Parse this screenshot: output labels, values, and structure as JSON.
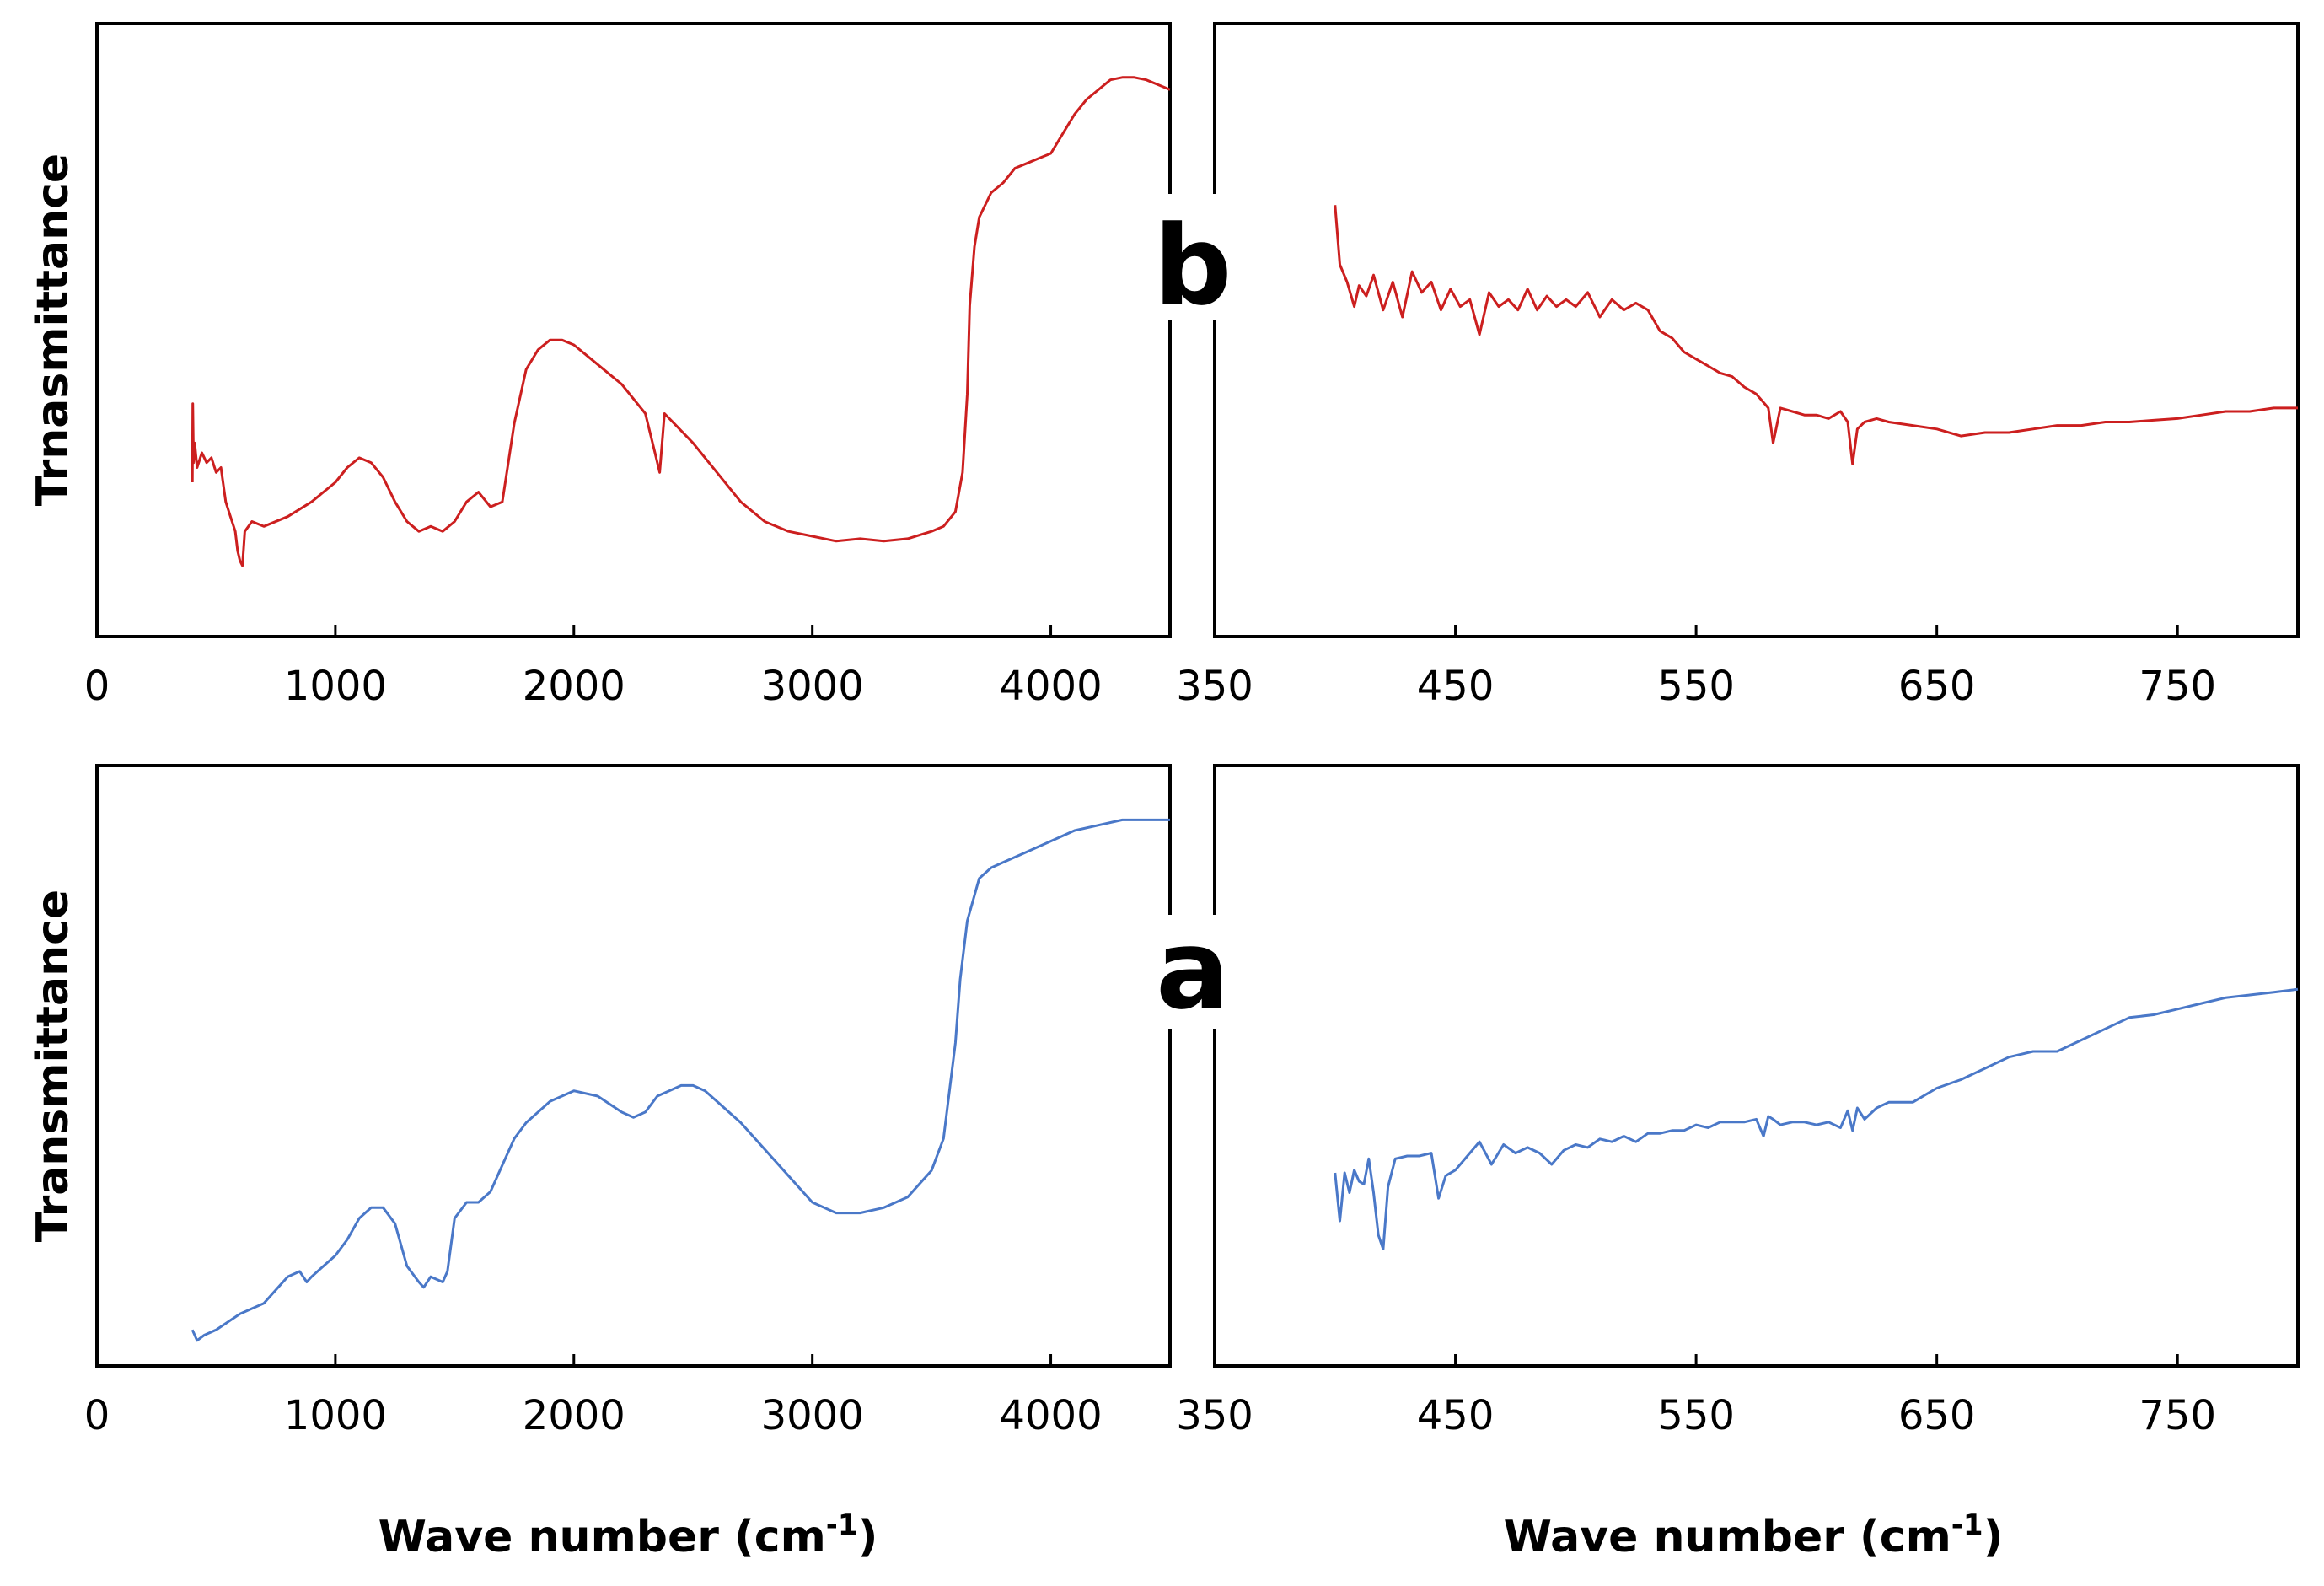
{
  "figure": {
    "colors": {
      "series_b": "#cc1f1f",
      "series_a": "#4a78c8"
    },
    "label_b": "b",
    "label_a": "a"
  },
  "chart_data": [
    {
      "id": "b-full",
      "type": "line",
      "panel": "b",
      "ylabel": "Trnasmittance",
      "xlabel": "",
      "xlim": [
        0,
        4500
      ],
      "ylim": [
        0,
        100
      ],
      "xticks": [
        0,
        1000,
        2000,
        3000,
        4000
      ],
      "series": [
        {
          "name": "b",
          "x": [
            400,
            402,
            405,
            410,
            420,
            440,
            460,
            480,
            500,
            520,
            540,
            560,
            580,
            590,
            600,
            610,
            620,
            650,
            700,
            800,
            900,
            1000,
            1050,
            1100,
            1150,
            1200,
            1250,
            1300,
            1350,
            1400,
            1450,
            1500,
            1550,
            1600,
            1650,
            1700,
            1750,
            1800,
            1850,
            1900,
            1950,
            2000,
            2100,
            2200,
            2300,
            2340,
            2360,
            2380,
            2420,
            2500,
            2600,
            2700,
            2800,
            2900,
            3000,
            3100,
            3200,
            3300,
            3400,
            3500,
            3550,
            3600,
            3630,
            3650,
            3660,
            3680,
            3700,
            3750,
            3800,
            3850,
            3900,
            3950,
            4000,
            4050,
            4100,
            4150,
            4200,
            4250,
            4300,
            4350,
            4400,
            4450,
            4500
          ],
          "values": [
            22,
            38,
            26,
            30,
            25,
            28,
            26,
            27,
            24,
            25,
            18,
            15,
            12,
            8,
            6,
            5,
            12,
            14,
            13,
            15,
            18,
            22,
            25,
            27,
            26,
            23,
            18,
            14,
            12,
            13,
            12,
            14,
            18,
            20,
            17,
            18,
            34,
            45,
            49,
            51,
            51,
            50,
            46,
            42,
            36,
            28,
            24,
            36,
            34,
            30,
            24,
            18,
            14,
            12,
            11,
            10,
            10.5,
            10,
            10.5,
            12,
            13,
            16,
            24,
            40,
            58,
            70,
            76,
            81,
            83,
            86,
            87,
            88,
            89,
            93,
            97,
            100,
            102,
            104,
            104.5,
            104.5,
            104,
            103,
            102
          ]
        }
      ]
    },
    {
      "id": "b-zoom",
      "type": "line",
      "panel": "b",
      "ylabel": "",
      "xlabel": "",
      "xlim": [
        350,
        800
      ],
      "ylim": [
        0,
        100
      ],
      "xticks": [
        350,
        450,
        550,
        650,
        750
      ],
      "series": [
        {
          "name": "b",
          "x": [
            400,
            402,
            405,
            408,
            410,
            413,
            416,
            420,
            424,
            428,
            432,
            436,
            440,
            444,
            448,
            452,
            456,
            460,
            464,
            468,
            472,
            476,
            480,
            484,
            488,
            492,
            496,
            500,
            505,
            510,
            515,
            520,
            525,
            530,
            535,
            540,
            545,
            550,
            555,
            560,
            565,
            570,
            575,
            580,
            582,
            585,
            590,
            595,
            600,
            605,
            610,
            613,
            615,
            617,
            620,
            625,
            630,
            640,
            650,
            660,
            670,
            680,
            690,
            700,
            710,
            720,
            730,
            740,
            750,
            760,
            770,
            780,
            790,
            800
          ],
          "values": [
            92,
            75,
            70,
            63,
            69,
            66,
            72,
            62,
            70,
            60,
            73,
            67,
            70,
            62,
            68,
            63,
            65,
            55,
            67,
            63,
            65,
            62,
            68,
            62,
            66,
            63,
            65,
            63,
            67,
            60,
            65,
            62,
            64,
            62,
            56,
            54,
            50,
            48,
            46,
            44,
            43,
            40,
            38,
            34,
            24,
            34,
            33,
            32,
            32,
            31,
            33,
            30,
            18,
            28,
            30,
            31,
            30,
            29,
            28,
            26,
            27,
            27,
            28,
            29,
            29,
            30,
            30,
            30.5,
            31,
            32,
            33,
            33,
            34,
            34
          ]
        }
      ]
    },
    {
      "id": "a-full",
      "type": "line",
      "panel": "a",
      "ylabel": "Transmittance",
      "xlabel": "Wave number (cm",
      "xlabel_sup": "-1",
      "xlabel_end": ")",
      "xlim": [
        0,
        4500
      ],
      "ylim": [
        0,
        100
      ],
      "xticks": [
        0,
        1000,
        2000,
        3000,
        4000
      ],
      "series": [
        {
          "name": "a",
          "x": [
            400,
            420,
            450,
            500,
            600,
            700,
            800,
            850,
            880,
            900,
            950,
            1000,
            1050,
            1100,
            1150,
            1200,
            1250,
            1300,
            1350,
            1370,
            1400,
            1450,
            1470,
            1500,
            1550,
            1600,
            1650,
            1700,
            1750,
            1800,
            1900,
            2000,
            2100,
            2200,
            2250,
            2300,
            2350,
            2400,
            2450,
            2500,
            2550,
            2600,
            2700,
            2800,
            2900,
            3000,
            3100,
            3200,
            3300,
            3400,
            3500,
            3550,
            3600,
            3620,
            3650,
            3700,
            3750,
            3800,
            3900,
            4000,
            4100,
            4200,
            4300,
            4400,
            4500
          ],
          "values": [
            6,
            4,
            5,
            6,
            9,
            11,
            16,
            17,
            15,
            16,
            18,
            20,
            23,
            27,
            29,
            29,
            26,
            18,
            15,
            14,
            16,
            15,
            17,
            27,
            30,
            30,
            32,
            37,
            42,
            45,
            49,
            51,
            50,
            47,
            46,
            47,
            50,
            51,
            52,
            52,
            51,
            49,
            45,
            40,
            35,
            30,
            28,
            28,
            29,
            31,
            36,
            42,
            60,
            72,
            83,
            91,
            93,
            94,
            96,
            98,
            100,
            101,
            102,
            102,
            102
          ]
        }
      ]
    },
    {
      "id": "a-zoom",
      "type": "line",
      "panel": "a",
      "ylabel": "",
      "xlabel": "Wave number (cm",
      "xlabel_sup": "-1",
      "xlabel_end": ")",
      "xlim": [
        350,
        800
      ],
      "ylim": [
        0,
        100
      ],
      "xticks": [
        350,
        450,
        550,
        650,
        750
      ],
      "series": [
        {
          "name": "a",
          "x": [
            400,
            402,
            404,
            406,
            408,
            410,
            412,
            414,
            416,
            418,
            420,
            422,
            425,
            430,
            435,
            440,
            443,
            446,
            450,
            455,
            460,
            465,
            470,
            475,
            480,
            485,
            490,
            495,
            500,
            505,
            510,
            515,
            520,
            525,
            530,
            535,
            540,
            545,
            550,
            555,
            560,
            565,
            570,
            575,
            578,
            580,
            582,
            585,
            590,
            595,
            600,
            605,
            610,
            613,
            615,
            617,
            620,
            625,
            630,
            640,
            650,
            660,
            670,
            680,
            690,
            700,
            710,
            720,
            730,
            740,
            750,
            760,
            770,
            780,
            790,
            800
          ],
          "values": [
            37,
            20,
            37,
            30,
            38,
            34,
            33,
            42,
            30,
            15,
            10,
            32,
            42,
            43,
            43,
            44,
            28,
            36,
            38,
            43,
            48,
            40,
            47,
            44,
            46,
            44,
            40,
            45,
            47,
            46,
            49,
            48,
            50,
            48,
            51,
            51,
            52,
            52,
            54,
            53,
            55,
            55,
            55,
            56,
            50,
            57,
            56,
            54,
            55,
            55,
            54,
            55,
            53,
            59,
            52,
            60,
            56,
            60,
            62,
            62,
            67,
            70,
            74,
            78,
            80,
            80,
            84,
            88,
            92,
            93,
            95,
            97,
            99,
            100,
            101,
            102
          ]
        }
      ]
    }
  ]
}
